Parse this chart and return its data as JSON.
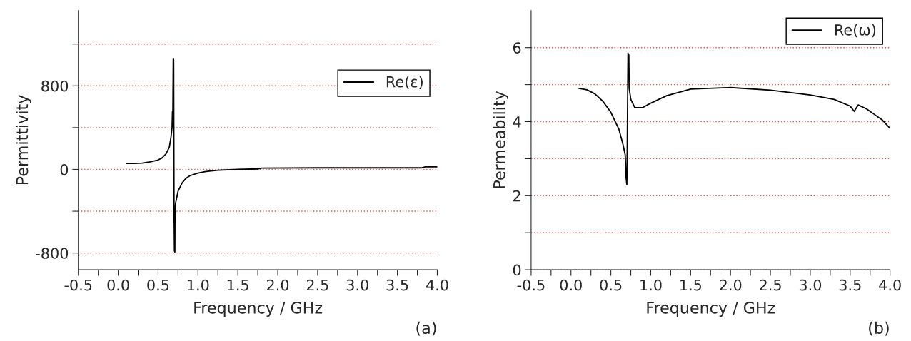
{
  "chart_data": [
    {
      "type": "line",
      "xlabel": "Frequency / GHz",
      "ylabel": "Permittivity",
      "annotations": [
        "(a)"
      ],
      "xlim": [
        -0.5,
        4.0
      ],
      "xticks": [
        -0.5,
        {
          "value": -0.25,
          "label": null
        },
        {
          "value": 0,
          "label": "0.0"
        },
        {
          "value": 0.25,
          "label": null
        },
        0.5,
        {
          "value": 0.75,
          "label": null
        },
        {
          "value": 1,
          "label": "1.0"
        },
        {
          "value": 1.25,
          "label": null
        },
        1.5,
        {
          "value": 1.75,
          "label": null
        },
        {
          "value": 2,
          "label": "2.0"
        },
        {
          "value": 2.25,
          "label": null
        },
        2.5,
        {
          "value": 2.75,
          "label": null
        },
        {
          "value": 3,
          "label": "3.0"
        },
        {
          "value": 3.25,
          "label": null
        },
        3.5,
        {
          "value": 3.75,
          "label": null
        },
        {
          "value": 4,
          "label": "4.0"
        }
      ],
      "ylim": [
        -960,
        1520
      ],
      "yticks": [
        -800,
        {
          "value": -400,
          "label": null
        },
        0,
        {
          "value": 400,
          "label": null
        },
        800,
        {
          "value": 1200,
          "label": null
        }
      ],
      "grid": "y",
      "legend": "right",
      "marker": "none",
      "line_style": "solid",
      "series": [
        {
          "name": "Re(ε)",
          "color": "#000000",
          "x": [
            0.1,
            0.2,
            0.3,
            0.4,
            0.5,
            0.55,
            0.6,
            0.64,
            0.66,
            0.675,
            0.68,
            0.685,
            0.69,
            0.695,
            0.7,
            0.705,
            0.71,
            0.712,
            0.72,
            0.75,
            0.8,
            0.85,
            0.9,
            1.0,
            1.1,
            1.25,
            1.5,
            1.75,
            1.8,
            2.5,
            3.0,
            3.8,
            3.85,
            4.0
          ],
          "values": [
            58,
            58,
            60,
            72,
            90,
            110,
            150,
            210,
            300,
            400,
            550,
            560,
            1060,
            1050,
            -400,
            -780,
            -790,
            -400,
            -320,
            -210,
            -130,
            -85,
            -60,
            -35,
            -20,
            -8,
            0,
            5,
            12,
            15,
            15,
            15,
            25,
            25
          ]
        }
      ]
    },
    {
      "type": "line",
      "xlabel": "Frequency / GHz",
      "ylabel": "Permeability",
      "annotations": [
        "(b)"
      ],
      "xlim": [
        -0.5,
        4.0
      ],
      "xticks": [
        -0.5,
        {
          "value": -0.25,
          "label": null
        },
        {
          "value": 0,
          "label": "0.0"
        },
        {
          "value": 0.25,
          "label": null
        },
        0.5,
        {
          "value": 0.75,
          "label": null
        },
        {
          "value": 1,
          "label": "1.0"
        },
        {
          "value": 1.25,
          "label": null
        },
        1.5,
        {
          "value": 1.75,
          "label": null
        },
        {
          "value": 2,
          "label": "2.0"
        },
        {
          "value": 2.25,
          "label": null
        },
        2.5,
        {
          "value": 2.75,
          "label": null
        },
        {
          "value": 3,
          "label": "3.0"
        },
        {
          "value": 3.25,
          "label": null
        },
        3.5,
        {
          "value": 3.75,
          "label": null
        },
        {
          "value": 4,
          "label": "4.0"
        }
      ],
      "ylim": [
        0,
        7
      ],
      "yticks": [
        0,
        {
          "value": 1,
          "label": null
        },
        2,
        {
          "value": 3,
          "label": null
        },
        4,
        {
          "value": 5,
          "label": null
        },
        6
      ],
      "grid": "y",
      "legend": "top right",
      "marker": "none",
      "line_style": "solid",
      "series": [
        {
          "name": "Re(ω)",
          "color": "#000000",
          "x": [
            0.1,
            0.2,
            0.3,
            0.4,
            0.5,
            0.6,
            0.65,
            0.68,
            0.69,
            0.7,
            0.705,
            0.715,
            0.725,
            0.73,
            0.75,
            0.8,
            0.9,
            1.0,
            1.2,
            1.5,
            2.0,
            2.5,
            3.0,
            3.3,
            3.5,
            3.55,
            3.6,
            3.7,
            3.8,
            3.9,
            4.0
          ],
          "values": [
            4.9,
            4.86,
            4.75,
            4.55,
            4.25,
            3.8,
            3.4,
            3.1,
            2.5,
            2.3,
            3.3,
            5.85,
            5.8,
            4.9,
            4.6,
            4.38,
            4.38,
            4.5,
            4.7,
            4.88,
            4.92,
            4.85,
            4.72,
            4.6,
            4.42,
            4.28,
            4.45,
            4.35,
            4.2,
            4.05,
            3.82
          ]
        }
      ]
    }
  ]
}
